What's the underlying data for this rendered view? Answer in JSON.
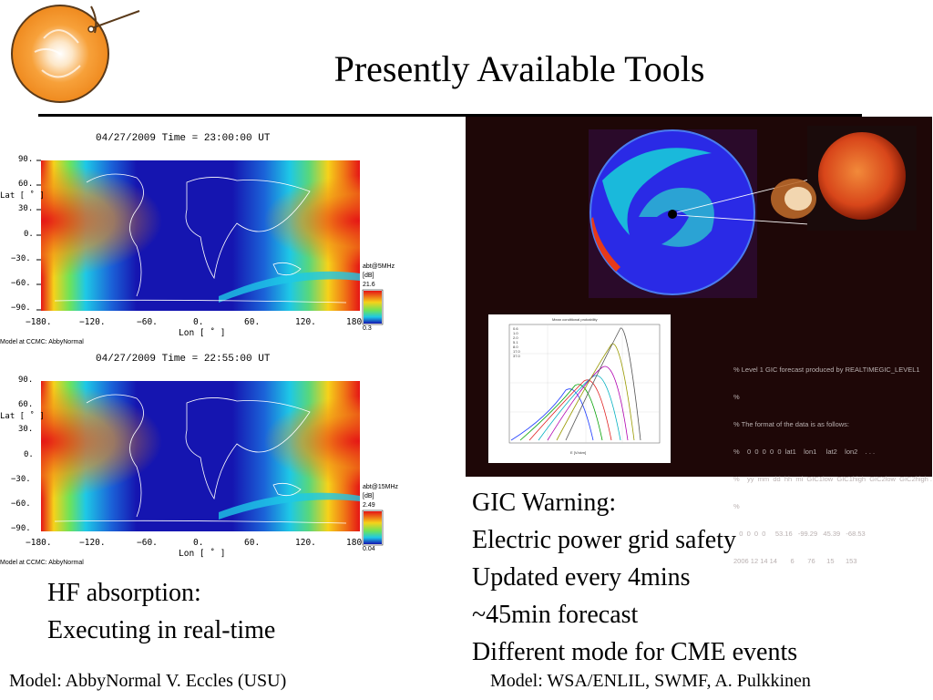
{
  "slide": {
    "title": "Presently Available Tools",
    "footer_left": "Model: AbbyNormal V. Eccles (USU)",
    "footer_right": "Model: WSA/ENLIL, SWMF, A. Pulkkinen"
  },
  "hf_maps": [
    {
      "timestamp": "04/27/2009 Time = 23:00:00 UT",
      "lat_ticks": [
        "90.",
        "60.",
        "30.",
        "0.",
        "−30.",
        "−60.",
        "−90."
      ],
      "lon_ticks": [
        "−180.",
        "−120.",
        "−60.",
        "0.",
        "60.",
        "120.",
        "180"
      ],
      "lat_label": "Lat [ ˚ ]",
      "lon_label": "Lon [ ˚ ]",
      "colorbar_title": "abt@5MHz",
      "colorbar_unit": "[dB]",
      "colorbar_max": "21.6",
      "colorbar_min": "0.3",
      "credit": "Model at CCMC: AbbyNormal"
    },
    {
      "timestamp": "04/27/2009 Time = 22:55:00 UT",
      "lat_ticks": [
        "90.",
        "60.",
        "30.",
        "0.",
        "−30.",
        "−60.",
        "−90."
      ],
      "lon_ticks": [
        "−180.",
        "−120.",
        "−60.",
        "0.",
        "60.",
        "120.",
        "180"
      ],
      "lat_label": "Lat [ ˚ ]",
      "lon_label": "Lon [ ˚ ]",
      "colorbar_title": "abt@15MHz",
      "colorbar_unit": "[dB]",
      "colorbar_max": "2.49",
      "colorbar_min": "0.04",
      "credit": "Model at CCMC: AbbyNormal"
    }
  ],
  "gic_panel": {
    "plot_title": "Mean conditional probability",
    "legend": [
      "0.6",
      "1.0",
      "2.0",
      "5.1",
      "8.0",
      "17.0",
      "37.0"
    ],
    "x_label": "E [V/ckm]",
    "forecast_text_lines": [
      "% Level 1 GIC forecast produced by REALTIMEGIC_LEVEL1",
      "%",
      "% The format of the data is as follows:",
      "%    0  0  0  0  0  lat1    lon1     lat2    lon2    . . .",
      "%    yy  mm  dd  hh  mi  GIC1low  GIC1high  GIC2low  GIC2high . . .",
      "%",
      "   0  0  0  0     53.16   -99.29   45.39   -68.53",
      "2006 12 14 14       6       76      15      153"
    ]
  },
  "hf_text": {
    "line1": "HF absorption:",
    "line2": "Executing in real-time"
  },
  "gic_text": {
    "line1": "GIC Warning:",
    "line2": "Electric power grid safety",
    "line3": "Updated every 4mins",
    "line4": "~45min forecast",
    "line5": "Different mode for CME events"
  },
  "colors": {
    "map_low": "#1414b4",
    "map_mid": "#1ec8e6",
    "map_high": "#e61414",
    "gic_bg": "#1e0707",
    "sun": "#e0521a"
  }
}
